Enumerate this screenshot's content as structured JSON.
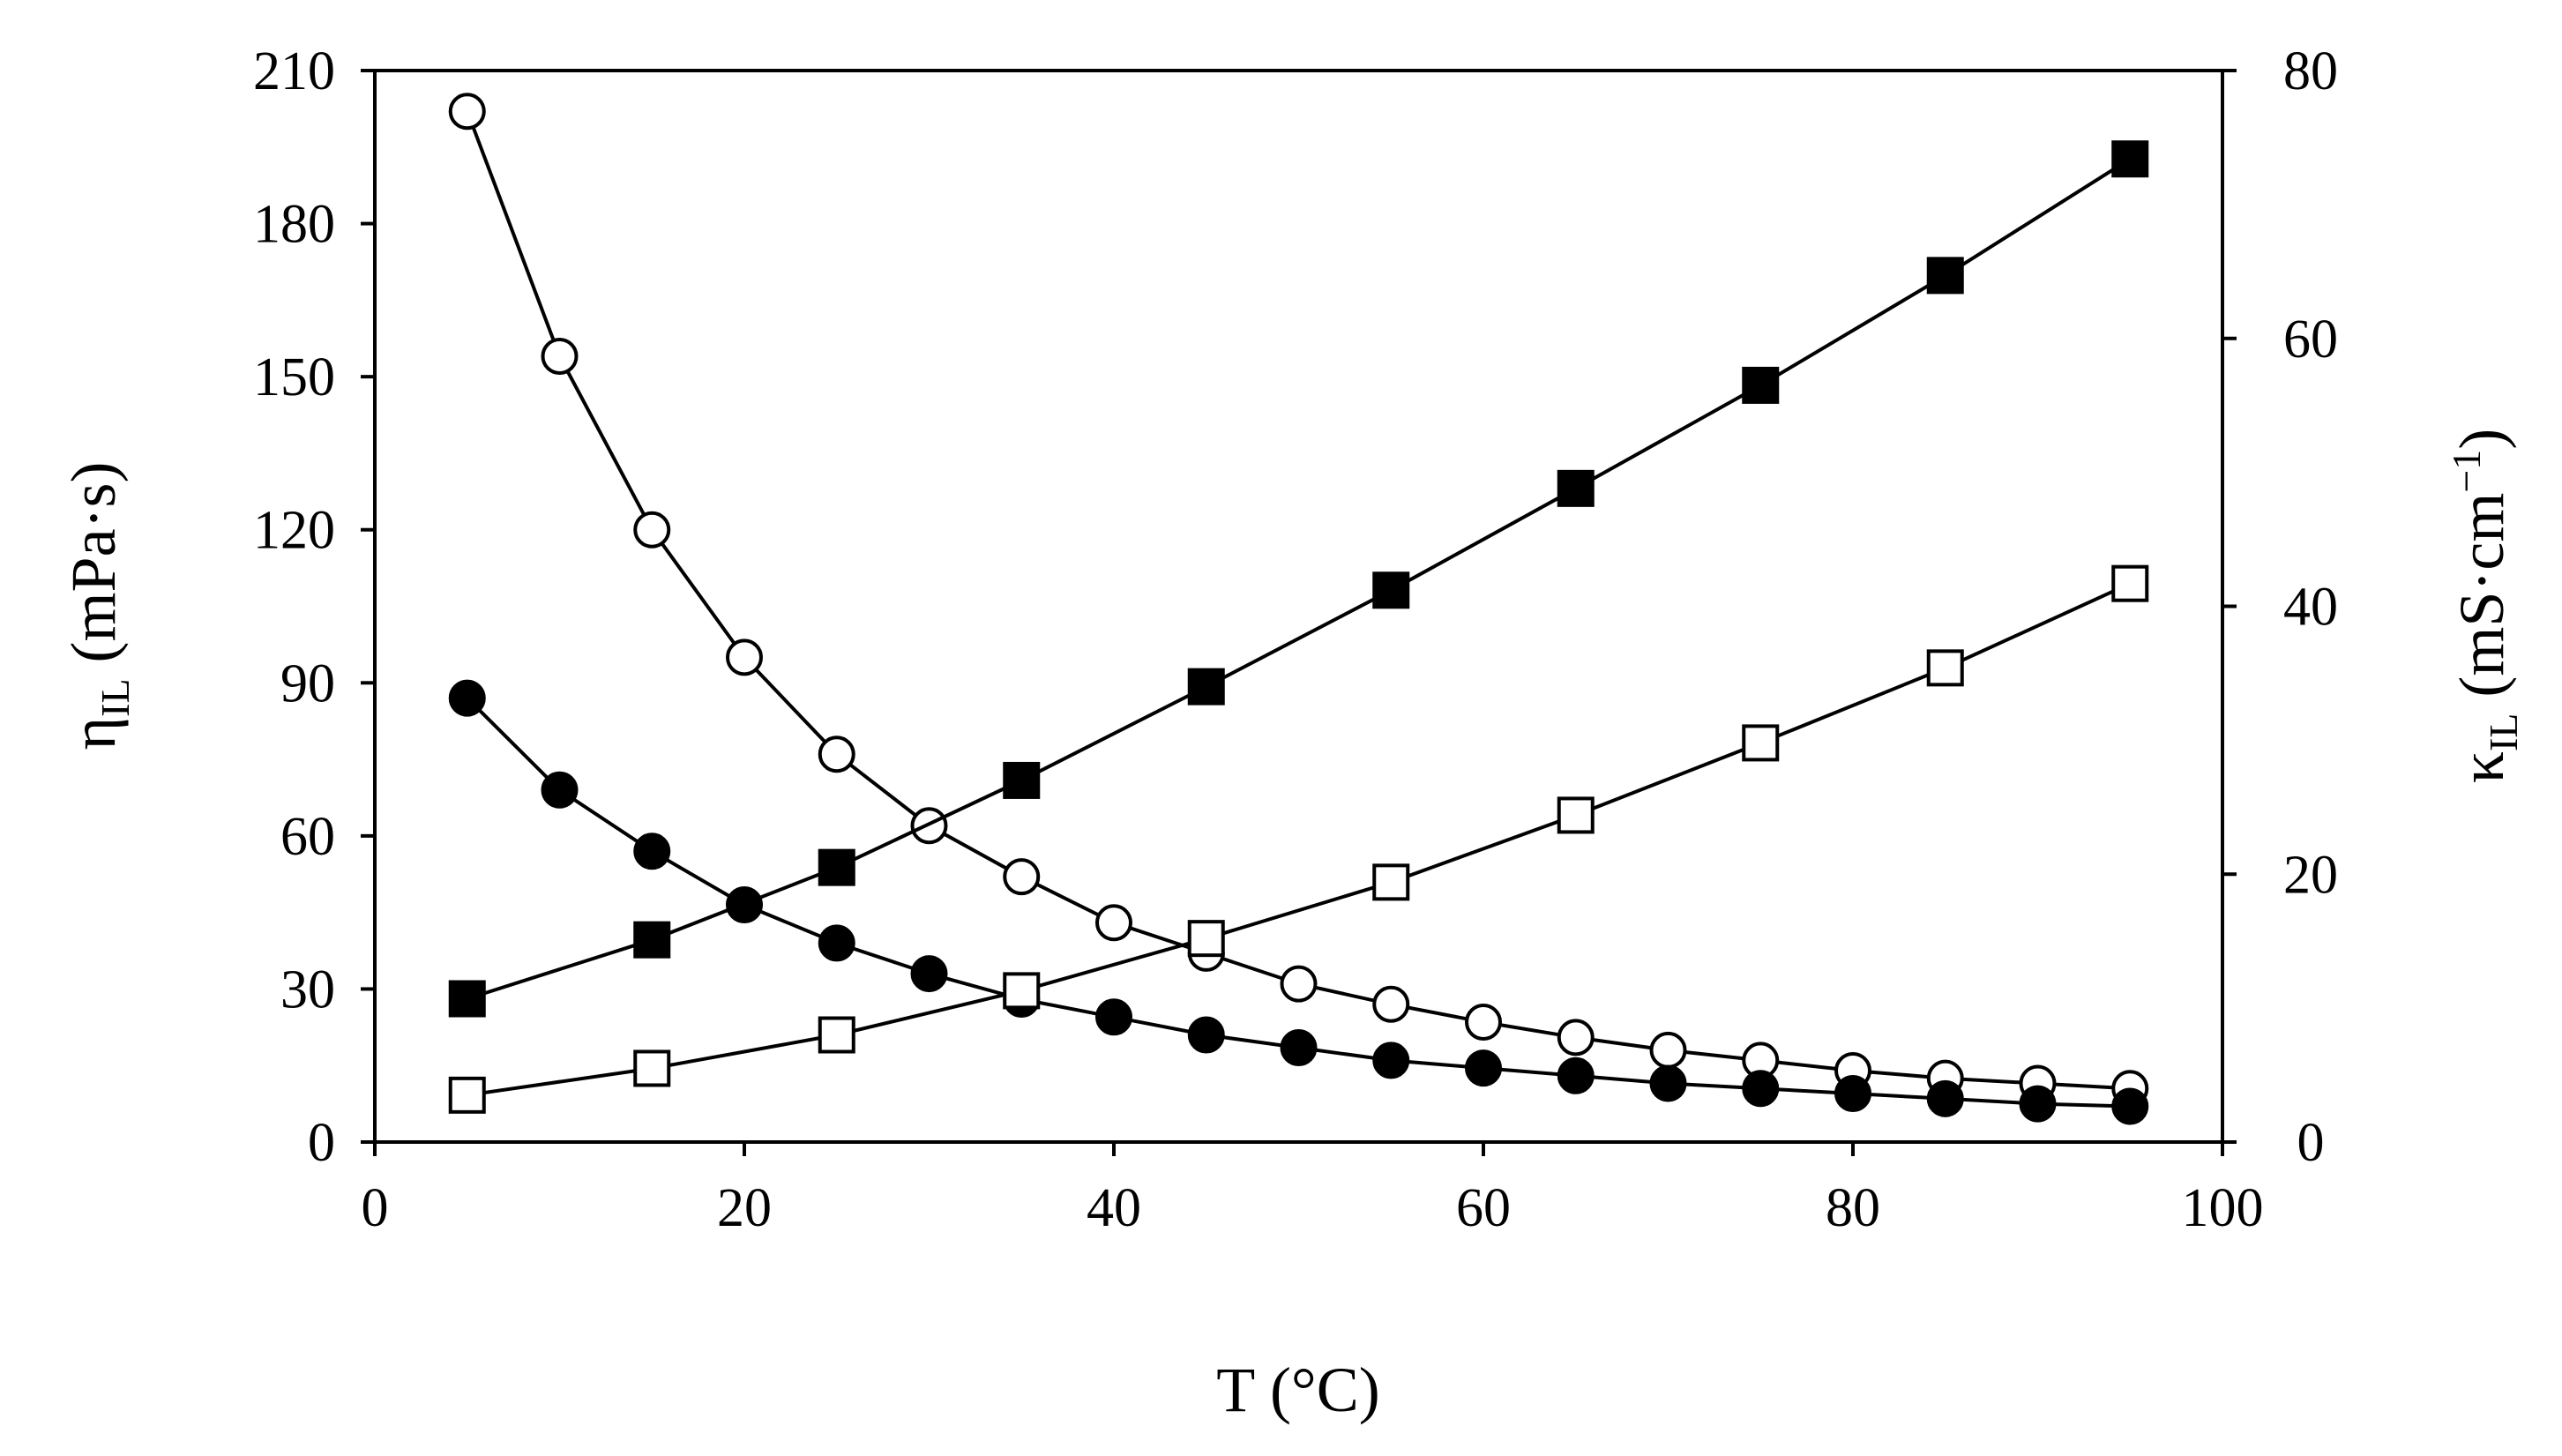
{
  "chart_data": {
    "type": "scatter",
    "xlabel": "T (°C)",
    "ylabel_left": {
      "symbol": "η",
      "subscript": "IL",
      "unit": " (mPa·s)"
    },
    "ylabel_right": {
      "symbol": "κ",
      "subscript": "IL",
      "unit_pre": " (mS·cm",
      "unit_sup": "−1",
      "unit_post": ")"
    },
    "xlim": [
      0,
      100
    ],
    "ylim_left": [
      0,
      210
    ],
    "ylim_right": [
      0,
      80
    ],
    "x_ticks": [
      0,
      20,
      40,
      60,
      80,
      100
    ],
    "y_ticks_left": [
      0,
      30,
      60,
      90,
      120,
      150,
      180,
      210
    ],
    "y_ticks_right": [
      0,
      20,
      40,
      60,
      80
    ],
    "grid": false,
    "legend": "none",
    "series": [
      {
        "name": "viscosity open circles",
        "axis": "left",
        "marker": "circle",
        "filled": false,
        "x": [
          5,
          10,
          15,
          20,
          25,
          30,
          35,
          40,
          45,
          50,
          55,
          60,
          65,
          70,
          75,
          80,
          85,
          90,
          95
        ],
        "y": [
          202,
          154,
          120,
          95,
          76,
          62,
          52,
          43,
          37,
          31,
          27,
          23.5,
          20.5,
          18,
          16,
          14,
          12.5,
          11.5,
          10.5
        ]
      },
      {
        "name": "viscosity filled circles",
        "axis": "left",
        "marker": "circle",
        "filled": true,
        "x": [
          5,
          10,
          15,
          20,
          25,
          30,
          35,
          40,
          45,
          50,
          55,
          60,
          65,
          70,
          75,
          80,
          85,
          90,
          95
        ],
        "y": [
          87,
          69,
          57,
          46.5,
          39,
          33,
          28,
          24.5,
          21,
          18.5,
          16,
          14.5,
          13,
          11.5,
          10.5,
          9.5,
          8.5,
          7.5,
          7
        ]
      },
      {
        "name": "conductivity filled squares",
        "axis": "right",
        "marker": "square",
        "filled": true,
        "x": [
          5,
          15,
          25,
          35,
          45,
          55,
          65,
          75,
          85,
          95
        ],
        "y": [
          10.7,
          15.1,
          20.5,
          27,
          34,
          41.2,
          48.8,
          56.5,
          64.7,
          73.4
        ]
      },
      {
        "name": "conductivity open squares",
        "axis": "right",
        "marker": "square",
        "filled": false,
        "x": [
          5,
          15,
          25,
          35,
          45,
          55,
          65,
          75,
          85,
          95
        ],
        "y": [
          3.5,
          5.5,
          8,
          11.3,
          15.2,
          19.4,
          24.4,
          29.8,
          35.4,
          41.7
        ]
      }
    ]
  }
}
